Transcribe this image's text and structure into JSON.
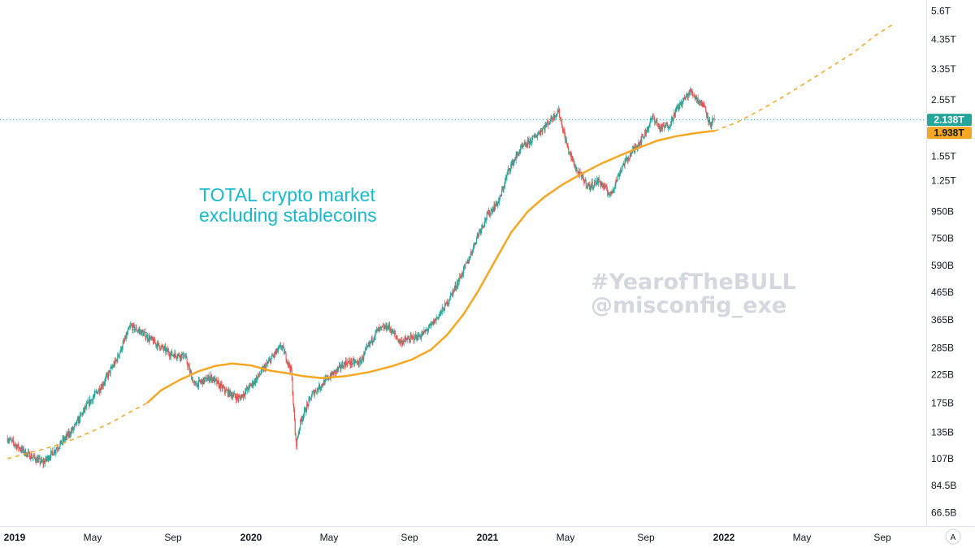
{
  "chart_data": {
    "type": "candlestick",
    "scale": "log",
    "title": "",
    "annotation_lines": [
      "TOTAL crypto market",
      "excluding stablecoins"
    ],
    "watermark_lines": [
      "#YearofTheBULL",
      "@misconfig_exe"
    ],
    "y_ticks": [
      {
        "label": "5.6T",
        "value": 5600
      },
      {
        "label": "4.35T",
        "value": 4350
      },
      {
        "label": "3.35T",
        "value": 3350
      },
      {
        "label": "2.55T",
        "value": 2550
      },
      {
        "label": "1.55T",
        "value": 1550
      },
      {
        "label": "1.25T",
        "value": 1250
      },
      {
        "label": "950B",
        "value": 950
      },
      {
        "label": "750B",
        "value": 750
      },
      {
        "label": "590B",
        "value": 590
      },
      {
        "label": "465B",
        "value": 465
      },
      {
        "label": "365B",
        "value": 365
      },
      {
        "label": "285B",
        "value": 285
      },
      {
        "label": "225B",
        "value": 225
      },
      {
        "label": "175B",
        "value": 175
      },
      {
        "label": "135B",
        "value": 135
      },
      {
        "label": "107B",
        "value": 107
      },
      {
        "label": "84.5B",
        "value": 84.5
      },
      {
        "label": "66.5B",
        "value": 66.5
      }
    ],
    "x_ticks": [
      {
        "label": "2019",
        "t": 2019.0,
        "bold": true
      },
      {
        "label": "May",
        "t": 2019.33
      },
      {
        "label": "Sep",
        "t": 2019.67
      },
      {
        "label": "2020",
        "t": 2020.0,
        "bold": true
      },
      {
        "label": "May",
        "t": 2020.33
      },
      {
        "label": "Sep",
        "t": 2020.67
      },
      {
        "label": "2021",
        "t": 2021.0,
        "bold": true
      },
      {
        "label": "May",
        "t": 2021.33
      },
      {
        "label": "Sep",
        "t": 2021.67
      },
      {
        "label": "2022",
        "t": 2022.0,
        "bold": true
      },
      {
        "label": "May",
        "t": 2022.33
      },
      {
        "label": "Sep",
        "t": 2022.67
      }
    ],
    "price_path": [
      [
        2018.97,
        128
      ],
      [
        2019.05,
        112
      ],
      [
        2019.12,
        103
      ],
      [
        2019.18,
        118
      ],
      [
        2019.25,
        140
      ],
      [
        2019.3,
        168
      ],
      [
        2019.37,
        205
      ],
      [
        2019.43,
        255
      ],
      [
        2019.49,
        345
      ],
      [
        2019.53,
        330
      ],
      [
        2019.6,
        295
      ],
      [
        2019.66,
        270
      ],
      [
        2019.72,
        265
      ],
      [
        2019.76,
        205
      ],
      [
        2019.83,
        220
      ],
      [
        2019.89,
        195
      ],
      [
        2019.95,
        182
      ],
      [
        2020.02,
        215
      ],
      [
        2020.1,
        270
      ],
      [
        2020.13,
        290
      ],
      [
        2020.17,
        232
      ],
      [
        2020.19,
        120
      ],
      [
        2020.21,
        150
      ],
      [
        2020.26,
        190
      ],
      [
        2020.33,
        220
      ],
      [
        2020.4,
        250
      ],
      [
        2020.46,
        250
      ],
      [
        2020.53,
        330
      ],
      [
        2020.58,
        345
      ],
      [
        2020.63,
        300
      ],
      [
        2020.68,
        310
      ],
      [
        2020.72,
        318
      ],
      [
        2020.76,
        345
      ],
      [
        2020.82,
        410
      ],
      [
        2020.87,
        500
      ],
      [
        2020.92,
        620
      ],
      [
        2020.96,
        780
      ],
      [
        2021.0,
        920
      ],
      [
        2021.05,
        1050
      ],
      [
        2021.09,
        1380
      ],
      [
        2021.14,
        1650
      ],
      [
        2021.19,
        1800
      ],
      [
        2021.25,
        2050
      ],
      [
        2021.3,
        2320
      ],
      [
        2021.34,
        1650
      ],
      [
        2021.38,
        1350
      ],
      [
        2021.43,
        1180
      ],
      [
        2021.47,
        1250
      ],
      [
        2021.52,
        1100
      ],
      [
        2021.57,
        1420
      ],
      [
        2021.62,
        1650
      ],
      [
        2021.66,
        1850
      ],
      [
        2021.7,
        2200
      ],
      [
        2021.73,
        1980
      ],
      [
        2021.77,
        2050
      ],
      [
        2021.8,
        2350
      ],
      [
        2021.83,
        2550
      ],
      [
        2021.86,
        2750
      ],
      [
        2021.89,
        2550
      ],
      [
        2021.92,
        2400
      ],
      [
        2021.94,
        2050
      ],
      [
        2021.96,
        2138
      ]
    ],
    "ma_solid": [
      [
        2019.56,
        175
      ],
      [
        2019.62,
        196
      ],
      [
        2019.7,
        215
      ],
      [
        2019.78,
        232
      ],
      [
        2019.85,
        243
      ],
      [
        2019.92,
        248
      ],
      [
        2020.0,
        244
      ],
      [
        2020.08,
        233
      ],
      [
        2020.15,
        228
      ],
      [
        2020.22,
        222
      ],
      [
        2020.3,
        218
      ],
      [
        2020.4,
        222
      ],
      [
        2020.5,
        230
      ],
      [
        2020.6,
        243
      ],
      [
        2020.68,
        257
      ],
      [
        2020.76,
        280
      ],
      [
        2020.83,
        320
      ],
      [
        2020.9,
        385
      ],
      [
        2020.96,
        470
      ],
      [
        2021.03,
        610
      ],
      [
        2021.1,
        790
      ],
      [
        2021.17,
        950
      ],
      [
        2021.24,
        1080
      ],
      [
        2021.32,
        1210
      ],
      [
        2021.4,
        1330
      ],
      [
        2021.48,
        1450
      ],
      [
        2021.56,
        1560
      ],
      [
        2021.64,
        1670
      ],
      [
        2021.72,
        1780
      ],
      [
        2021.8,
        1850
      ],
      [
        2021.88,
        1900
      ],
      [
        2021.94,
        1930
      ],
      [
        2021.96,
        1938
      ]
    ],
    "ma_dashed_start": [
      [
        2018.97,
        107
      ],
      [
        2019.05,
        112
      ],
      [
        2019.13,
        117
      ],
      [
        2019.22,
        124
      ],
      [
        2019.31,
        134
      ],
      [
        2019.4,
        146
      ],
      [
        2019.48,
        160
      ],
      [
        2019.56,
        175
      ]
    ],
    "ma_dashed_end": [
      [
        2021.96,
        1938
      ],
      [
        2022.05,
        2080
      ],
      [
        2022.15,
        2320
      ],
      [
        2022.25,
        2620
      ],
      [
        2022.35,
        2980
      ],
      [
        2022.45,
        3400
      ],
      [
        2022.55,
        3880
      ],
      [
        2022.64,
        4500
      ],
      [
        2022.72,
        5000
      ]
    ],
    "last_price": {
      "label": "2.138T",
      "value": 2138
    },
    "ma_last": {
      "label": "1.938T",
      "value": 1938
    },
    "colors": {
      "up": "#26a69a",
      "down": "#ef5350",
      "ma": "#f5a623",
      "annotation": "#1ab8cc",
      "watermark": "#d4d8de"
    }
  },
  "axis": {
    "auto_label": "A"
  }
}
